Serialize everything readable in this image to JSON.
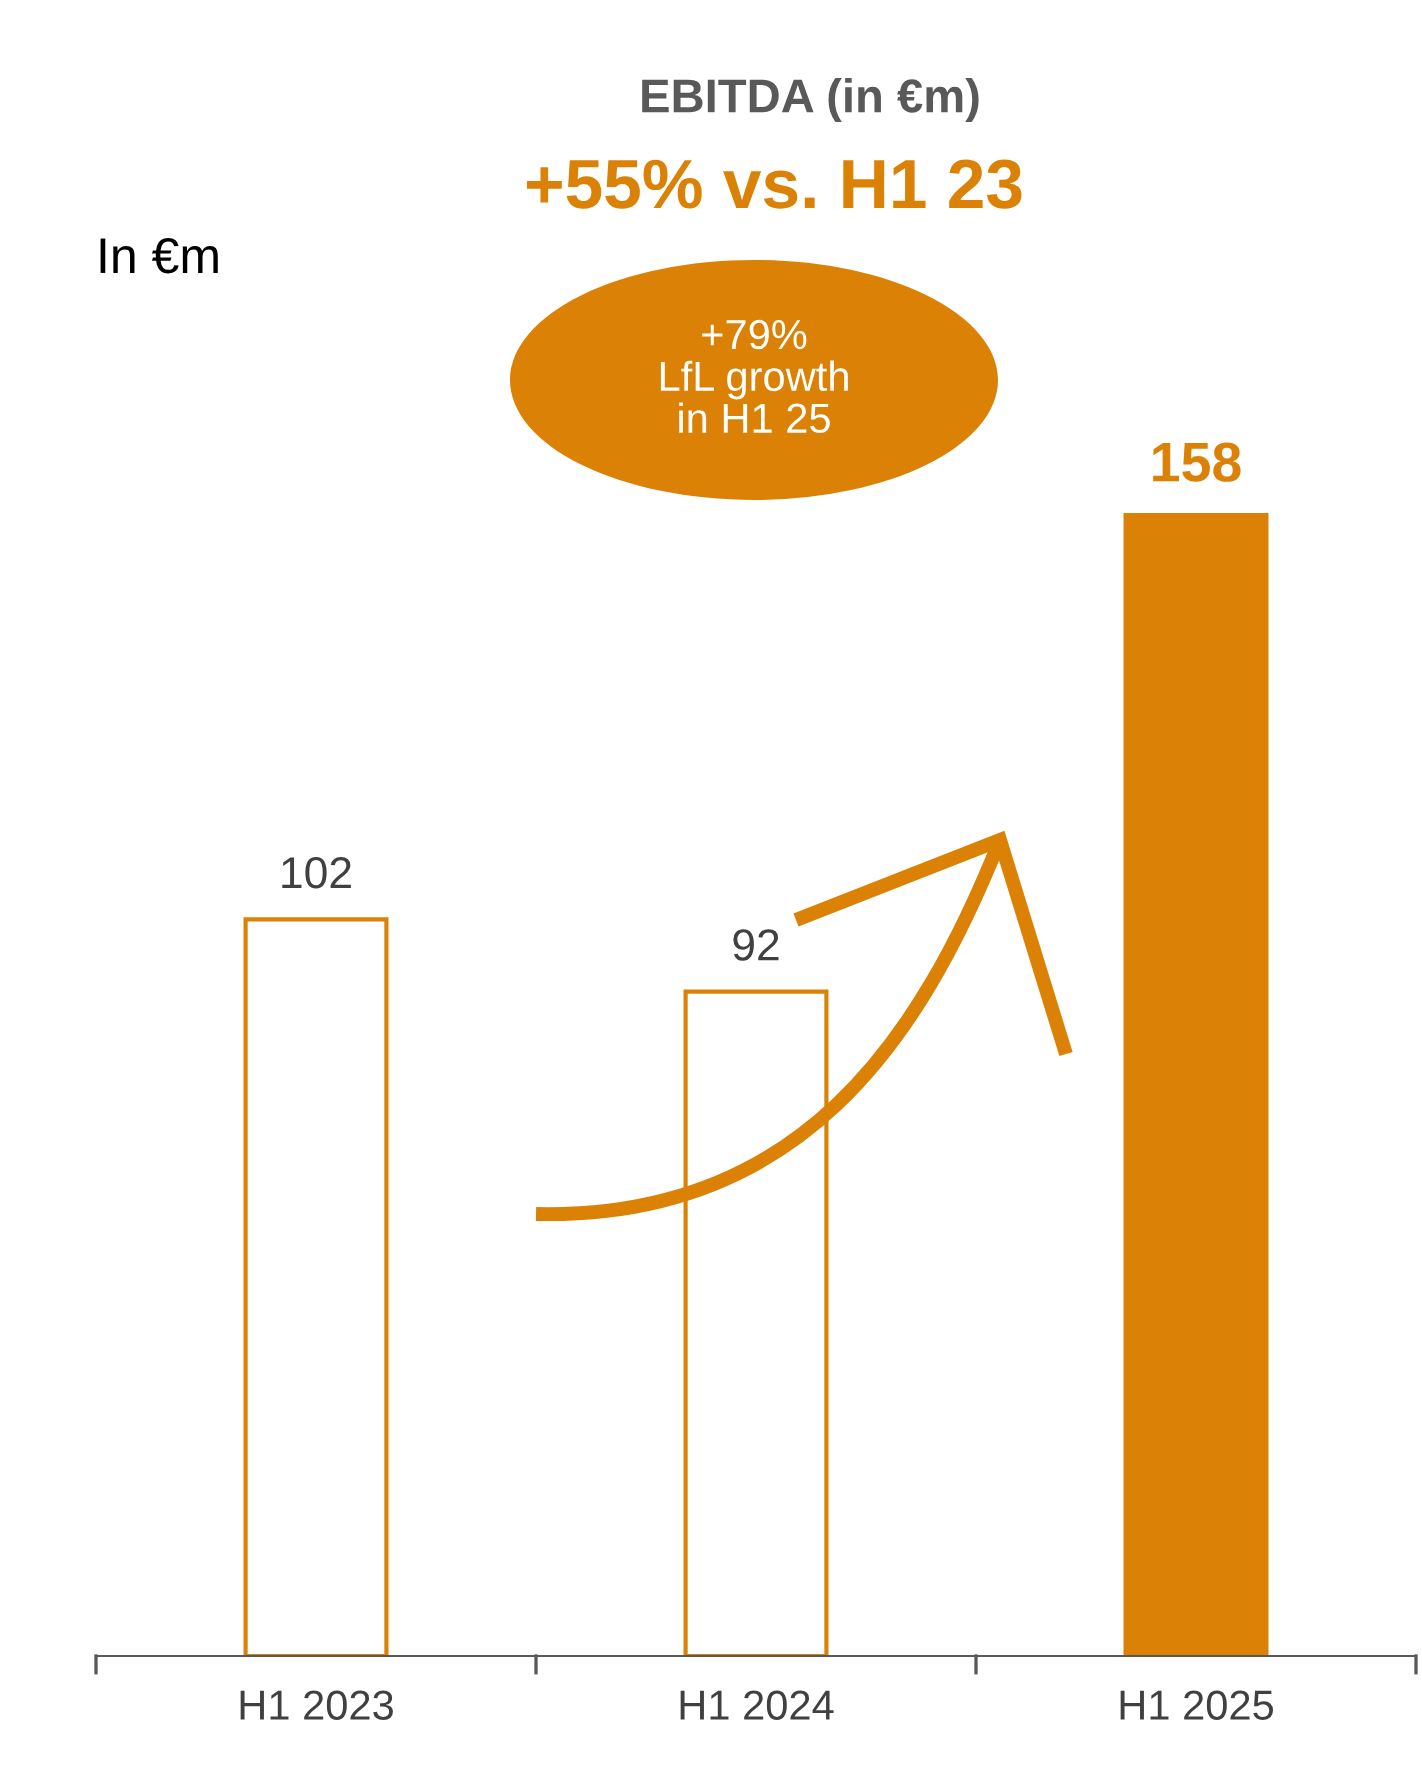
{
  "chart_data": {
    "type": "bar",
    "title": "EBITDA (in €m)",
    "subtitle": "+55% vs. H1 23",
    "ylabel": "In €m",
    "categories": [
      "H1 2023",
      "H1 2024",
      "H1 2025"
    ],
    "values": [
      102,
      92,
      158
    ],
    "colors": [
      "#ffffff",
      "#ffffff",
      "#db8206"
    ],
    "data_labels": true,
    "annotations": [
      "+79%\nLfL growth\nin H1 25"
    ],
    "grid": false,
    "legend": false
  }
}
